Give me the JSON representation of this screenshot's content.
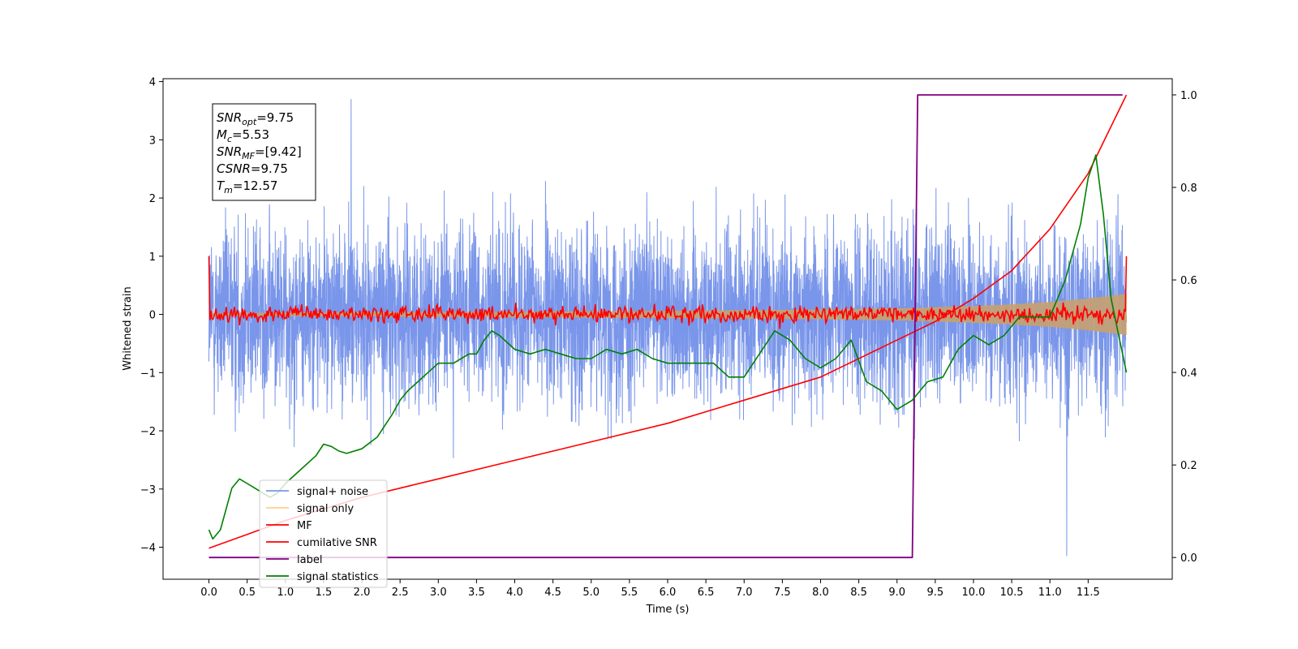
{
  "chart_data": {
    "type": "line",
    "title": "",
    "xlabel": "Time (s)",
    "ylabel": "Whitened strain",
    "xlim": [
      -0.6,
      12.6
    ],
    "ylim": [
      -4.55,
      4.05
    ],
    "ylim_right": [
      -0.047,
      1.035
    ],
    "x_ticks": [
      "0.0",
      "0.5",
      "1.0",
      "1.5",
      "2.0",
      "2.5",
      "3.0",
      "3.5",
      "4.0",
      "4.5",
      "5.0",
      "5.5",
      "6.0",
      "6.5",
      "7.0",
      "7.5",
      "8.0",
      "8.5",
      "9.0",
      "9.5",
      "10.0",
      "10.5",
      "11.0",
      "11.5"
    ],
    "y_ticks": [
      "4",
      "3",
      "2",
      "1",
      "0",
      "−1",
      "−2",
      "−3",
      "−4"
    ],
    "y_ticks_right": [
      "1.0",
      "0.8",
      "0.6",
      "0.4",
      "0.2",
      "0.0"
    ],
    "grid": false,
    "legend_position": "lower-left",
    "annotation": {
      "lines": [
        {
          "name": "SNR",
          "sub": "opt",
          "value": "=9.75"
        },
        {
          "name": "M",
          "sub": "c",
          "value": "=5.53"
        },
        {
          "name": "SNR",
          "sub": "MF",
          "value": "=[9.42]"
        },
        {
          "name": "CSNR",
          "sub": "",
          "value": "=9.75"
        },
        {
          "name": "T",
          "sub": "m",
          "value": "=12.57"
        }
      ]
    },
    "series": [
      {
        "name": "signal+ noise",
        "color": "#4169e1",
        "axis": "left",
        "style": "noise",
        "x_range": [
          0,
          12.0
        ],
        "y_center": 0.3,
        "y_spread": 1.0,
        "peaks": {
          "max": 3.7,
          "min": -4.15
        }
      },
      {
        "name": "signal only",
        "color": "#ffa500",
        "axis": "left",
        "style": "envelope",
        "x": [
          0,
          3.0,
          6.0,
          8.0,
          9.0,
          10.0,
          10.5,
          11.0,
          11.5,
          12.0
        ],
        "envelope": [
          0.02,
          0.04,
          0.06,
          0.08,
          0.1,
          0.14,
          0.17,
          0.21,
          0.27,
          0.35
        ]
      },
      {
        "name": "MF",
        "color": "#ff0000",
        "axis": "left",
        "style": "oscillation",
        "x_range": [
          0,
          12.0
        ],
        "amplitude": 0.12,
        "edge_values": [
          1.0,
          1.0
        ]
      },
      {
        "name": "cumilative SNR",
        "color": "#ff0000",
        "axis": "right",
        "x": [
          0,
          0.5,
          1.0,
          2.0,
          3.0,
          4.0,
          5.0,
          6.0,
          7.0,
          8.0,
          9.0,
          9.5,
          10.0,
          10.5,
          11.0,
          11.5,
          12.0
        ],
        "y": [
          0.02,
          0.05,
          0.08,
          0.13,
          0.17,
          0.21,
          0.25,
          0.29,
          0.34,
          0.39,
          0.47,
          0.51,
          0.56,
          0.62,
          0.71,
          0.83,
          1.0
        ]
      },
      {
        "name": "label",
        "color": "#800080",
        "axis": "right",
        "x": [
          0,
          9.2,
          9.27,
          11.95
        ],
        "y": [
          0.0,
          0.0,
          1.0,
          1.0
        ]
      },
      {
        "name": "signal statistics",
        "color": "#008000",
        "axis": "right",
        "x": [
          0.0,
          0.05,
          0.15,
          0.3,
          0.4,
          0.5,
          0.6,
          0.7,
          0.8,
          0.9,
          1.0,
          1.2,
          1.4,
          1.5,
          1.6,
          1.7,
          1.8,
          2.0,
          2.2,
          2.4,
          2.5,
          2.6,
          2.8,
          3.0,
          3.2,
          3.4,
          3.5,
          3.6,
          3.7,
          3.8,
          4.0,
          4.2,
          4.4,
          4.6,
          4.8,
          5.0,
          5.2,
          5.4,
          5.6,
          5.8,
          6.0,
          6.2,
          6.4,
          6.6,
          6.8,
          7.0,
          7.2,
          7.4,
          7.6,
          7.8,
          8.0,
          8.2,
          8.4,
          8.6,
          8.8,
          9.0,
          9.2,
          9.4,
          9.6,
          9.8,
          10.0,
          10.2,
          10.4,
          10.6,
          10.8,
          11.0,
          11.2,
          11.4,
          11.5,
          11.6,
          11.7,
          11.8,
          11.9,
          12.0
        ],
        "y": [
          0.06,
          0.04,
          0.06,
          0.15,
          0.17,
          0.16,
          0.15,
          0.14,
          0.13,
          0.14,
          0.16,
          0.19,
          0.22,
          0.245,
          0.24,
          0.23,
          0.225,
          0.235,
          0.26,
          0.31,
          0.34,
          0.36,
          0.39,
          0.42,
          0.42,
          0.44,
          0.44,
          0.47,
          0.49,
          0.48,
          0.45,
          0.44,
          0.45,
          0.44,
          0.43,
          0.43,
          0.45,
          0.44,
          0.45,
          0.43,
          0.42,
          0.42,
          0.42,
          0.42,
          0.39,
          0.39,
          0.44,
          0.49,
          0.47,
          0.43,
          0.41,
          0.43,
          0.47,
          0.38,
          0.36,
          0.32,
          0.34,
          0.38,
          0.39,
          0.45,
          0.48,
          0.46,
          0.48,
          0.52,
          0.52,
          0.52,
          0.6,
          0.72,
          0.82,
          0.87,
          0.74,
          0.56,
          0.48,
          0.4
        ]
      }
    ]
  }
}
